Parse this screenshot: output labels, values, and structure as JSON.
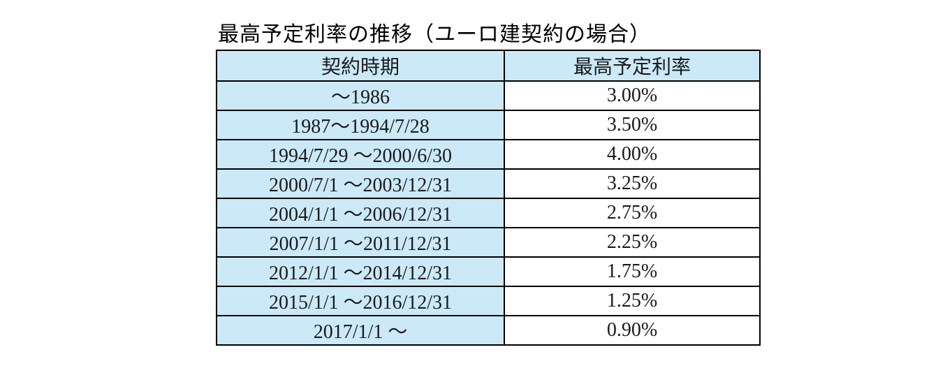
{
  "title": "最高予定利率の推移（ユーロ建契約の場合）",
  "table": {
    "headers": [
      "契約時期",
      "最高予定利率"
    ],
    "rows": [
      {
        "period": "～1986",
        "rate": "3.00%"
      },
      {
        "period": "1987～1994/7/28",
        "rate": "3.50%"
      },
      {
        "period": "1994/7/29 ～2000/6/30",
        "rate": "4.00%"
      },
      {
        "period": "2000/7/1 ～2003/12/31",
        "rate": "3.25%"
      },
      {
        "period": "2004/1/1 ～2006/12/31",
        "rate": "2.75%"
      },
      {
        "period": "2007/1/1 ～2011/12/31",
        "rate": "2.25%"
      },
      {
        "period": "2012/1/1 ～2014/12/31",
        "rate": "1.75%"
      },
      {
        "period": "2015/1/1 ～2016/12/31",
        "rate": "1.25%"
      },
      {
        "period": "2017/1/1 ～",
        "rate": "0.90%"
      }
    ]
  },
  "chart_data": {
    "type": "table",
    "title": "最高予定利率の推移（ユーロ建契約の場合）",
    "columns": [
      "契約時期",
      "最高予定利率"
    ],
    "categories": [
      "～1986",
      "1987～1994/7/28",
      "1994/7/29 ～2000/6/30",
      "2000/7/1 ～2003/12/31",
      "2004/1/1 ～2006/12/31",
      "2007/1/1 ～2011/12/31",
      "2012/1/1 ～2014/12/31",
      "2015/1/1 ～2016/12/31",
      "2017/1/1 ～"
    ],
    "values": [
      3.0,
      3.5,
      4.0,
      3.25,
      2.75,
      2.25,
      1.75,
      1.25,
      0.9
    ]
  },
  "colors": {
    "header_fill": "#cce9f8",
    "period_fill": "#cce9f8",
    "rate_fill": "#ffffff",
    "border": "#000000"
  }
}
